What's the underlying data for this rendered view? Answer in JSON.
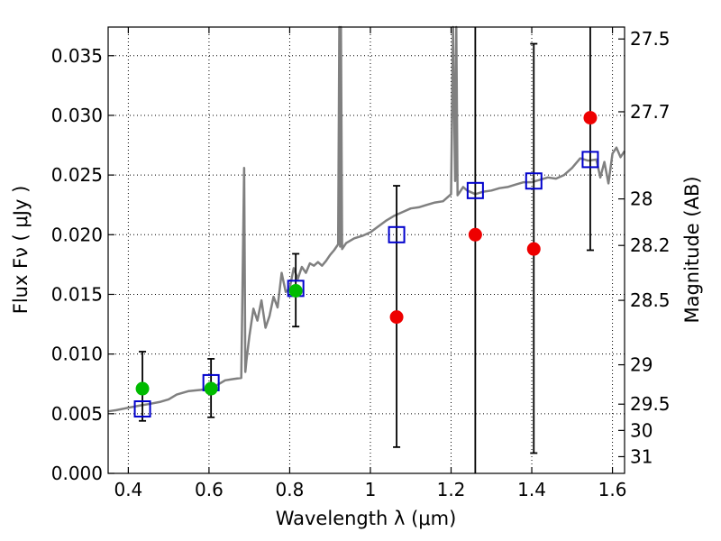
{
  "chart_data": {
    "type": "scatter",
    "xlabel": "Wavelength  λ (μm)",
    "ylabel": "Flux  Fν  ( μJy )",
    "ylabel_right": "Magnitude (AB)",
    "xlim": [
      0.35,
      1.63
    ],
    "ylim": [
      0.0,
      0.0374
    ],
    "grid": true,
    "x_ticks": [
      0.4,
      0.6,
      0.8,
      1.0,
      1.2,
      1.4,
      1.6
    ],
    "x_tick_labels": [
      "0.4",
      "0.6",
      "0.8",
      "1",
      "1.2",
      "1.4",
      "1.6"
    ],
    "y_ticks": [
      0.0,
      0.005,
      0.01,
      0.015,
      0.02,
      0.025,
      0.03,
      0.035
    ],
    "y_tick_labels": [
      "0.000",
      "0.005",
      "0.010",
      "0.015",
      "0.020",
      "0.025",
      "0.030",
      "0.035"
    ],
    "right_ticks": [
      {
        "label": "27.5",
        "flux": 0.0364
      },
      {
        "label": "27.7",
        "flux": 0.0303
      },
      {
        "label": "28",
        "flux": 0.023
      },
      {
        "label": "28.2",
        "flux": 0.0191
      },
      {
        "label": "28.5",
        "flux": 0.0145
      },
      {
        "label": "29",
        "flux": 0.0091
      },
      {
        "label": "29.5",
        "flux": 0.0058
      },
      {
        "label": "30",
        "flux": 0.0036
      },
      {
        "label": "31",
        "flux": 0.0014
      }
    ],
    "series": [
      {
        "color": "#808080",
        "style": "line",
        "x": [
          0.35,
          0.37,
          0.4,
          0.43,
          0.45,
          0.48,
          0.5,
          0.52,
          0.55,
          0.58,
          0.6,
          0.62,
          0.64,
          0.66,
          0.68,
          0.687,
          0.69,
          0.693,
          0.7,
          0.71,
          0.72,
          0.73,
          0.74,
          0.75,
          0.76,
          0.77,
          0.78,
          0.79,
          0.8,
          0.81,
          0.82,
          0.83,
          0.84,
          0.85,
          0.86,
          0.87,
          0.88,
          0.89,
          0.9,
          0.91,
          0.92,
          0.923,
          0.925,
          0.927,
          0.93,
          0.94,
          0.96,
          0.98,
          1.0,
          1.02,
          1.04,
          1.06,
          1.08,
          1.1,
          1.12,
          1.14,
          1.16,
          1.18,
          1.19,
          1.2,
          1.205,
          1.21,
          1.213,
          1.216,
          1.22,
          1.23,
          1.24,
          1.26,
          1.28,
          1.3,
          1.32,
          1.34,
          1.36,
          1.38,
          1.4,
          1.42,
          1.44,
          1.46,
          1.48,
          1.5,
          1.52,
          1.54,
          1.56,
          1.57,
          1.58,
          1.59,
          1.6,
          1.61,
          1.62,
          1.63
        ],
        "y": [
          0.0052,
          0.0053,
          0.0055,
          0.0057,
          0.0058,
          0.006,
          0.0062,
          0.0066,
          0.0069,
          0.007,
          0.0071,
          0.0074,
          0.0078,
          0.0079,
          0.008,
          0.0256,
          0.0085,
          0.0095,
          0.0115,
          0.0138,
          0.0128,
          0.0145,
          0.0122,
          0.0132,
          0.0148,
          0.0139,
          0.0168,
          0.0152,
          0.0155,
          0.0172,
          0.0163,
          0.0173,
          0.0168,
          0.0176,
          0.0174,
          0.0177,
          0.0174,
          0.0178,
          0.0183,
          0.0187,
          0.0192,
          0.0374,
          0.019,
          0.0374,
          0.0188,
          0.0193,
          0.0197,
          0.0199,
          0.0202,
          0.0207,
          0.0212,
          0.0216,
          0.0219,
          0.0222,
          0.0223,
          0.0225,
          0.0227,
          0.0228,
          0.0231,
          0.0234,
          0.0374,
          0.0245,
          0.0374,
          0.0233,
          0.0235,
          0.024,
          0.0237,
          0.0234,
          0.0236,
          0.0237,
          0.0239,
          0.024,
          0.0242,
          0.0244,
          0.0244,
          0.0246,
          0.0248,
          0.0247,
          0.025,
          0.0256,
          0.0264,
          0.0262,
          0.0263,
          0.0248,
          0.0261,
          0.0243,
          0.0268,
          0.0273,
          0.0265,
          0.027
        ]
      },
      {
        "color": "#0000cc",
        "style": "open-square",
        "x": [
          0.435,
          0.605,
          0.815,
          1.065,
          1.26,
          1.405,
          1.545
        ],
        "y": [
          0.0054,
          0.0076,
          0.0155,
          0.02,
          0.0237,
          0.0245,
          0.0263
        ]
      },
      {
        "color": "#00bb00",
        "style": "filled-circle",
        "x": [
          0.435,
          0.605,
          0.815
        ],
        "y": [
          0.0071,
          0.0071,
          0.0153
        ],
        "yerr_low": [
          0.0044,
          0.0047,
          0.0123
        ],
        "yerr_high": [
          0.0102,
          0.0096,
          0.0184
        ]
      },
      {
        "color": "#ee0000",
        "style": "filled-circle",
        "x": [
          1.065,
          1.26,
          1.405,
          1.545
        ],
        "y": [
          0.0131,
          0.02,
          0.0188,
          0.0298
        ],
        "yerr_low": [
          0.0022,
          0.0,
          0.0017,
          0.0187
        ],
        "yerr_high": [
          0.0241,
          0.0374,
          0.036,
          0.0374
        ]
      }
    ]
  }
}
